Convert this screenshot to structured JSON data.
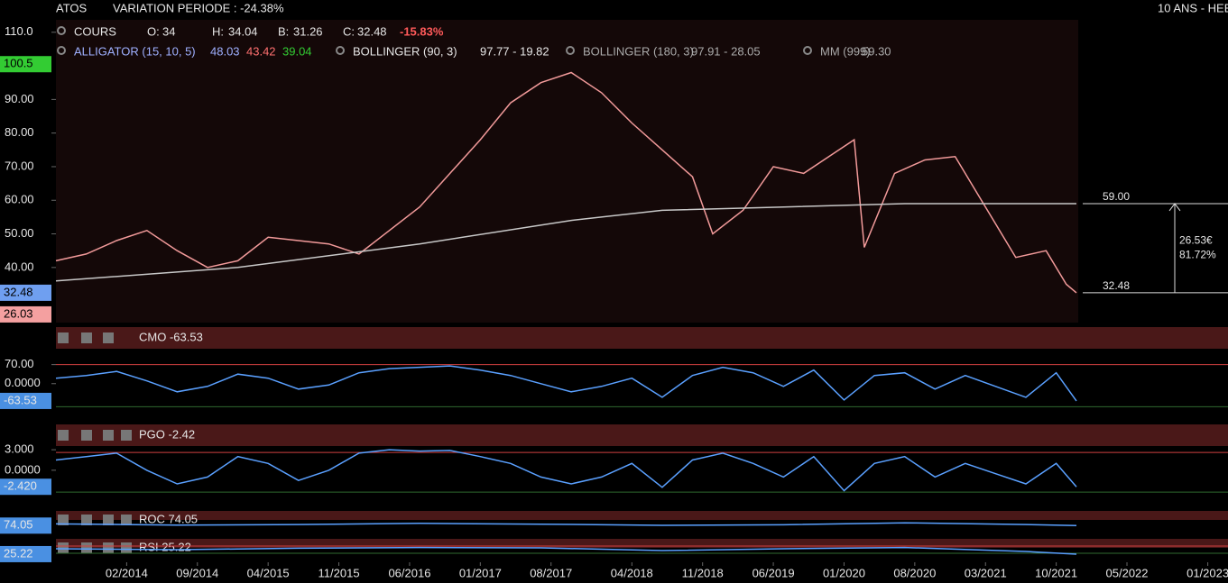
{
  "header": {
    "symbol": "ATOS",
    "variation": "VARIATION PERIODE : -24.38%",
    "range": "10 ANS - HEB",
    "cours": "COURS",
    "o_label": "O:",
    "o": "34",
    "h_label": "H:",
    "h": "34.04",
    "b_label": "B:",
    "b": "31.26",
    "c_label": "C:",
    "c": "32.48",
    "change": "-15.83%",
    "alligator": "ALLIGATOR (15, 10, 5)",
    "alligator_v1": "48.03",
    "alligator_v2": "43.42",
    "alligator_v3": "39.04",
    "boll1": "BOLLINGER (90, 3)",
    "boll1_v": "97.77 - 19.82",
    "boll2": "BOLLINGER (180, 3)",
    "boll2_v": "97.91 - 28.05",
    "mm": "MM (999)",
    "mm_v": "59.30"
  },
  "chart_data": [
    {
      "type": "line",
      "xlim": [
        "2013-07",
        "2023-03"
      ],
      "ylim": [
        23.6,
        113.7
      ],
      "xticks": [
        {
          "value": "2014-02",
          "label": "02/2014"
        },
        {
          "value": "2014-09",
          "label": "09/2014"
        },
        {
          "value": "2015-04",
          "label": "04/2015"
        },
        {
          "value": "2015-11",
          "label": "11/2015"
        },
        {
          "value": "2016-06",
          "label": "06/2016"
        },
        {
          "value": "2017-01",
          "label": "01/2017"
        },
        {
          "value": "2017-08",
          "label": "08/2017"
        },
        {
          "value": "2018-04",
          "label": "04/2018"
        },
        {
          "value": "2018-11",
          "label": "11/2018"
        },
        {
          "value": "2019-06",
          "label": "06/2019"
        },
        {
          "value": "2020-01",
          "label": "01/2020"
        },
        {
          "value": "2020-08",
          "label": "08/2020"
        },
        {
          "value": "2021-03",
          "label": "03/2021"
        },
        {
          "value": "2021-10",
          "label": "10/2021"
        },
        {
          "value": "2022-05",
          "label": "05/2022"
        },
        {
          "value": "2023-01",
          "label": "01/2023"
        }
      ],
      "yticks": [
        {
          "value": 40,
          "label": "40.00"
        },
        {
          "value": 50,
          "label": "50.00"
        },
        {
          "value": 60,
          "label": "60.00"
        },
        {
          "value": 70,
          "label": "70.00"
        },
        {
          "value": 80,
          "label": "80.00"
        },
        {
          "value": 90,
          "label": "90.00"
        },
        {
          "value": 110,
          "label": "110.0"
        }
      ],
      "series": [
        {
          "name": "COURS",
          "color": "#f29a9a",
          "x": [
            "2013-07",
            "2013-10",
            "2014-01",
            "2014-04",
            "2014-07",
            "2014-10",
            "2015-01",
            "2015-04",
            "2015-07",
            "2015-10",
            "2016-01",
            "2016-04",
            "2016-07",
            "2016-10",
            "2017-01",
            "2017-04",
            "2017-07",
            "2017-10",
            "2018-01",
            "2018-04",
            "2018-07",
            "2018-10",
            "2018-12",
            "2019-03",
            "2019-06",
            "2019-09",
            "2019-12",
            "2020-02",
            "2020-03",
            "2020-06",
            "2020-09",
            "2020-12",
            "2021-02",
            "2021-04",
            "2021-06",
            "2021-09",
            "2021-11",
            "2021-12"
          ],
          "values": [
            42,
            44,
            48,
            51,
            45,
            40,
            42,
            49,
            48,
            47,
            44,
            51,
            58,
            68,
            78,
            89,
            95,
            98,
            92,
            83,
            75,
            67,
            50,
            57,
            70,
            68,
            74,
            78,
            46,
            68,
            72,
            73,
            63,
            53,
            43,
            45,
            35,
            32.48
          ]
        },
        {
          "name": "MM (999)",
          "color": "#c8c8c8",
          "x": [
            "2013-07",
            "2015-01",
            "2016-07",
            "2017-10",
            "2018-07",
            "2019-07",
            "2020-07",
            "2021-12"
          ],
          "values": [
            36,
            40,
            47,
            54,
            57,
            58,
            59,
            59
          ]
        }
      ],
      "price_tags": [
        {
          "value": 100.5,
          "color": "#33cc33"
        },
        {
          "value": 32.48,
          "color": "#6f9ff0"
        },
        {
          "value": 26.03,
          "color": "#f4a0a0"
        }
      ],
      "levels": [
        {
          "value": 59,
          "label": "59.00"
        },
        {
          "value": 32.48,
          "label": "32.48"
        }
      ],
      "gain": "26.53€",
      "gain_pct": "81.72%"
    },
    {
      "type": "line",
      "title": "CMO -63.53",
      "ylim": [
        -120,
        125
      ],
      "yticks": [
        {
          "value": 70,
          "label": "70.00"
        },
        {
          "value": 0,
          "label": "0.0000"
        }
      ],
      "bands": [
        {
          "value": 70,
          "color": "#d04040"
        },
        {
          "value": -85,
          "color": "#2f6a2f"
        }
      ],
      "x": [
        "2013-07",
        "2013-10",
        "2014-01",
        "2014-04",
        "2014-07",
        "2014-10",
        "2015-01",
        "2015-04",
        "2015-07",
        "2015-10",
        "2016-01",
        "2016-04",
        "2016-07",
        "2016-10",
        "2017-01",
        "2017-04",
        "2017-07",
        "2017-10",
        "2018-01",
        "2018-04",
        "2018-07",
        "2018-10",
        "2019-01",
        "2019-04",
        "2019-07",
        "2019-10",
        "2020-01",
        "2020-04",
        "2020-07",
        "2020-10",
        "2021-01",
        "2021-04",
        "2021-07",
        "2021-10",
        "2021-12"
      ],
      "series": [
        {
          "name": "CMO",
          "color": "#5aa0ff",
          "values": [
            20,
            30,
            45,
            10,
            -30,
            -10,
            35,
            20,
            -20,
            -5,
            40,
            55,
            60,
            65,
            50,
            30,
            0,
            -30,
            -10,
            20,
            -50,
            30,
            60,
            40,
            -10,
            50,
            -60,
            30,
            40,
            -20,
            30,
            -10,
            -50,
            40,
            -63.53
          ]
        }
      ],
      "tag": -63.53
    },
    {
      "type": "line",
      "title": "PGO -2.42",
      "ylim": [
        -4.5,
        4.2
      ],
      "yticks": [
        {
          "value": 3,
          "label": "3.000"
        },
        {
          "value": 0,
          "label": "0.0000"
        }
      ],
      "bands": [
        {
          "value": 2.6,
          "color": "#d04040"
        },
        {
          "value": -3.2,
          "color": "#2f6a2f"
        }
      ],
      "x": [
        "2013-07",
        "2013-10",
        "2014-01",
        "2014-04",
        "2014-07",
        "2014-10",
        "2015-01",
        "2015-04",
        "2015-07",
        "2015-10",
        "2016-01",
        "2016-04",
        "2016-07",
        "2016-10",
        "2017-01",
        "2017-04",
        "2017-07",
        "2017-10",
        "2018-01",
        "2018-04",
        "2018-07",
        "2018-10",
        "2019-01",
        "2019-04",
        "2019-07",
        "2019-10",
        "2020-01",
        "2020-04",
        "2020-07",
        "2020-10",
        "2021-01",
        "2021-04",
        "2021-07",
        "2021-10",
        "2021-12"
      ],
      "series": [
        {
          "name": "PGO",
          "color": "#5aa0ff",
          "values": [
            1.5,
            2,
            2.5,
            0,
            -2,
            -1,
            2,
            1,
            -1.5,
            0,
            2.5,
            3,
            2.8,
            2.9,
            2,
            1,
            -1,
            -2,
            -1,
            1,
            -2.5,
            1.5,
            2.5,
            1,
            -1,
            2,
            -3,
            1,
            2,
            -1,
            1,
            -0.5,
            -2,
            1,
            -2.42
          ]
        }
      ],
      "tag": {
        "value": -2.42,
        "label": "-2.420"
      }
    },
    {
      "type": "line",
      "title": "ROC 74.05",
      "ylim": [
        40,
        110
      ],
      "x": [
        "2013-07",
        "2014-07",
        "2015-07",
        "2016-07",
        "2017-07",
        "2018-07",
        "2019-07",
        "2020-07",
        "2021-07",
        "2021-12"
      ],
      "series": [
        {
          "name": "ROC",
          "color": "#5aa0ff",
          "values": [
            80,
            76,
            78,
            82,
            79,
            75,
            77,
            84,
            78,
            74.05
          ]
        }
      ],
      "tag": 74.05
    },
    {
      "type": "line",
      "title": "RSI 25.22",
      "ylim": [
        0,
        100
      ],
      "bands": [
        {
          "value": 70,
          "color": "#d04040"
        },
        {
          "value": 30,
          "color": "#2f6a2f"
        }
      ],
      "x": [
        "2013-07",
        "2014-07",
        "2015-07",
        "2016-07",
        "2017-07",
        "2018-07",
        "2019-07",
        "2020-07",
        "2021-07",
        "2021-12"
      ],
      "series": [
        {
          "name": "RSI",
          "color": "#5aa0ff",
          "values": [
            55,
            50,
            58,
            62,
            60,
            45,
            55,
            62,
            40,
            25.22
          ]
        }
      ],
      "tag": 25.22
    }
  ]
}
